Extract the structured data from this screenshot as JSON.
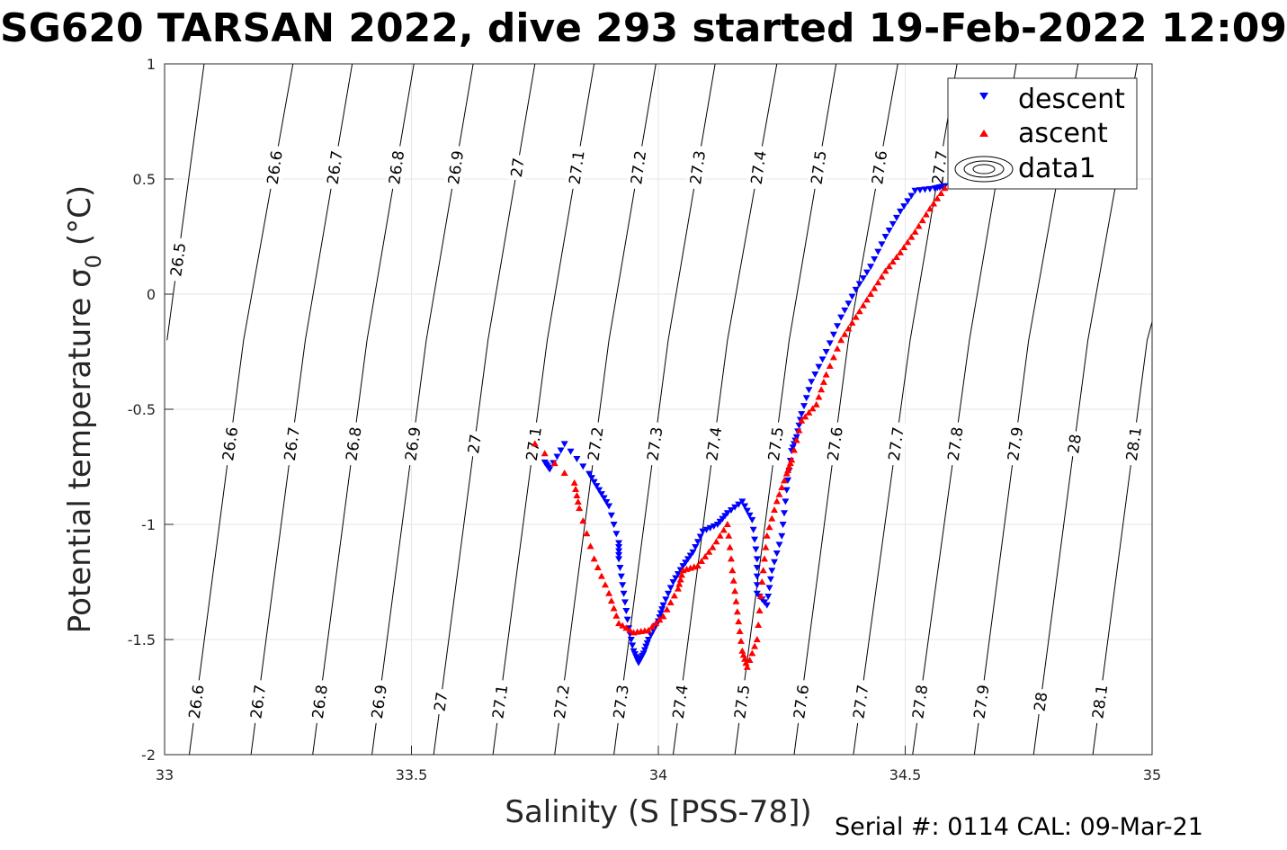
{
  "title": "SG620 TARSAN 2022, dive 293 started 19-Feb-2022 12:09",
  "footer": "Serial #: 0114  CAL: 09-Mar-21",
  "chart_data": {
    "type": "scatter",
    "xlabel": "Salinity (S [PSS-78])",
    "ylabel": "Potential temperature σ",
    "ylabel_sub": "0",
    "ylabel_unit": "(°C)",
    "xlim": [
      33,
      35
    ],
    "ylim": [
      -2,
      1
    ],
    "xticks": [
      33,
      33.5,
      34,
      34.5,
      35
    ],
    "xtick_labels": [
      "33",
      "33.5",
      "34",
      "34.5",
      "35"
    ],
    "yticks": [
      -2,
      -1.5,
      -1,
      -0.5,
      0,
      0.5,
      1
    ],
    "ytick_labels": [
      "-2",
      "-1.5",
      "-1",
      "-0.5",
      "0",
      "0.5",
      "1"
    ],
    "grid": true,
    "legend_position": "top-right",
    "colors": {
      "descent": "#0000ff",
      "ascent": "#ff0000",
      "contour": "#000000",
      "grid": "#e6e6e6"
    },
    "contours": [
      {
        "label": "26.5",
        "points": [
          [
            33.005,
            -0.2
          ],
          [
            33.08,
            1.0
          ]
        ]
      },
      {
        "label": "26.6",
        "points": [
          [
            33.05,
            -2.0
          ],
          [
            33.16,
            -0.2
          ],
          [
            33.26,
            1.0
          ]
        ]
      },
      {
        "label": "26.7",
        "points": [
          [
            33.175,
            -2.0
          ],
          [
            33.285,
            -0.2
          ],
          [
            33.38,
            1.0
          ]
        ]
      },
      {
        "label": "26.8",
        "points": [
          [
            33.3,
            -2.0
          ],
          [
            33.41,
            -0.2
          ],
          [
            33.505,
            1.0
          ]
        ]
      },
      {
        "label": "26.9",
        "points": [
          [
            33.42,
            -2.0
          ],
          [
            33.53,
            -0.2
          ],
          [
            33.625,
            1.0
          ]
        ]
      },
      {
        "label": "27",
        "points": [
          [
            33.545,
            -2.0
          ],
          [
            33.655,
            -0.2
          ],
          [
            33.75,
            1.0
          ]
        ]
      },
      {
        "label": "27.1",
        "points": [
          [
            33.665,
            -2.0
          ],
          [
            33.775,
            -0.2
          ],
          [
            33.87,
            1.0
          ]
        ]
      },
      {
        "label": "27.2",
        "points": [
          [
            33.79,
            -2.0
          ],
          [
            33.9,
            -0.2
          ],
          [
            33.995,
            1.0
          ]
        ]
      },
      {
        "label": "27.3",
        "points": [
          [
            33.91,
            -2.0
          ],
          [
            34.02,
            -0.2
          ],
          [
            34.115,
            1.0
          ]
        ]
      },
      {
        "label": "27.4",
        "points": [
          [
            34.03,
            -2.0
          ],
          [
            34.14,
            -0.2
          ],
          [
            34.24,
            1.0
          ]
        ]
      },
      {
        "label": "27.5",
        "points": [
          [
            34.155,
            -2.0
          ],
          [
            34.265,
            -0.2
          ],
          [
            34.36,
            1.0
          ]
        ]
      },
      {
        "label": "27.6",
        "points": [
          [
            34.275,
            -2.0
          ],
          [
            34.385,
            -0.2
          ],
          [
            34.485,
            1.0
          ]
        ]
      },
      {
        "label": "27.7",
        "points": [
          [
            34.395,
            -2.0
          ],
          [
            34.51,
            -0.2
          ],
          [
            34.605,
            1.0
          ]
        ]
      },
      {
        "label": "27.8",
        "points": [
          [
            34.515,
            -2.0
          ],
          [
            34.63,
            -0.2
          ],
          [
            34.725,
            1.0
          ]
        ]
      },
      {
        "label": "27.9",
        "points": [
          [
            34.64,
            -2.0
          ],
          [
            34.75,
            -0.2
          ],
          [
            34.85,
            1.0
          ]
        ]
      },
      {
        "label": "28",
        "points": [
          [
            34.76,
            -2.0
          ],
          [
            34.87,
            -0.2
          ],
          [
            34.97,
            1.0
          ]
        ]
      },
      {
        "label": "28.1",
        "points": [
          [
            34.88,
            -2.0
          ],
          [
            34.99,
            -0.2
          ],
          [
            35.0,
            -0.12
          ]
        ]
      }
    ],
    "contour_label_rows": [
      {
        "y": 0.55,
        "labels": [
          "26.6",
          "26.7",
          "26.8",
          "26.9",
          "27",
          "27.1",
          "27.2",
          "27.3",
          "27.4",
          "27.5",
          "27.6",
          "27.7"
        ]
      },
      {
        "y": -0.65,
        "labels": [
          "26.6",
          "26.7",
          "26.8",
          "26.9",
          "27",
          "27.1",
          "27.2",
          "27.3",
          "27.4",
          "27.5",
          "27.6",
          "27.7",
          "27.8",
          "27.9",
          "28",
          "28.1"
        ]
      },
      {
        "y": -1.77,
        "labels": [
          "26.6",
          "26.7",
          "26.8",
          "26.9",
          "27",
          "27.1",
          "27.2",
          "27.3",
          "27.4",
          "27.5",
          "27.6",
          "27.7",
          "27.8",
          "27.9",
          "28",
          "28.1"
        ]
      },
      {
        "y": 0.15,
        "labels": [
          "26.5"
        ]
      }
    ],
    "series": [
      {
        "name": "descent",
        "marker": "triangle-down",
        "color": "#0000ff",
        "points": [
          [
            33.77,
            -0.73
          ],
          [
            33.78,
            -0.76
          ],
          [
            33.81,
            -0.65
          ],
          [
            33.86,
            -0.78
          ],
          [
            33.88,
            -0.85
          ],
          [
            33.9,
            -0.92
          ],
          [
            33.92,
            -1.08
          ],
          [
            33.92,
            -1.15
          ],
          [
            33.93,
            -1.3
          ],
          [
            33.94,
            -1.45
          ],
          [
            33.95,
            -1.55
          ],
          [
            33.96,
            -1.6
          ],
          [
            33.97,
            -1.56
          ],
          [
            33.98,
            -1.5
          ],
          [
            34.0,
            -1.42
          ],
          [
            34.01,
            -1.35
          ],
          [
            34.03,
            -1.25
          ],
          [
            34.05,
            -1.18
          ],
          [
            34.07,
            -1.12
          ],
          [
            34.09,
            -1.03
          ],
          [
            34.12,
            -1.0
          ],
          [
            34.14,
            -0.95
          ],
          [
            34.17,
            -0.9
          ],
          [
            34.19,
            -0.98
          ],
          [
            34.2,
            -1.15
          ],
          [
            34.2,
            -1.3
          ],
          [
            34.22,
            -1.35
          ],
          [
            34.23,
            -1.2
          ],
          [
            34.25,
            -1.05
          ],
          [
            34.26,
            -0.85
          ],
          [
            34.27,
            -0.68
          ],
          [
            34.28,
            -0.62
          ],
          [
            34.29,
            -0.52
          ],
          [
            34.31,
            -0.38
          ],
          [
            34.34,
            -0.25
          ],
          [
            34.37,
            -0.1
          ],
          [
            34.4,
            0.02
          ],
          [
            34.43,
            0.12
          ],
          [
            34.46,
            0.25
          ],
          [
            34.49,
            0.36
          ],
          [
            34.52,
            0.45
          ],
          [
            34.56,
            0.46
          ],
          [
            34.58,
            0.47
          ]
        ]
      },
      {
        "name": "ascent",
        "marker": "triangle-up",
        "color": "#ff0000",
        "points": [
          [
            33.75,
            -0.65
          ],
          [
            33.83,
            -0.82
          ],
          [
            33.84,
            -0.93
          ],
          [
            33.87,
            -1.15
          ],
          [
            33.9,
            -1.3
          ],
          [
            33.92,
            -1.43
          ],
          [
            33.95,
            -1.47
          ],
          [
            33.98,
            -1.46
          ],
          [
            34.01,
            -1.4
          ],
          [
            34.04,
            -1.28
          ],
          [
            34.05,
            -1.2
          ],
          [
            34.08,
            -1.18
          ],
          [
            34.11,
            -1.1
          ],
          [
            34.14,
            -1.0
          ],
          [
            34.15,
            -1.2
          ],
          [
            34.16,
            -1.38
          ],
          [
            34.17,
            -1.55
          ],
          [
            34.18,
            -1.62
          ],
          [
            34.2,
            -1.5
          ],
          [
            34.21,
            -1.25
          ],
          [
            34.22,
            -1.05
          ],
          [
            34.24,
            -0.9
          ],
          [
            34.26,
            -0.78
          ],
          [
            34.27,
            -0.72
          ],
          [
            34.29,
            -0.55
          ],
          [
            34.32,
            -0.48
          ],
          [
            34.34,
            -0.35
          ],
          [
            34.37,
            -0.2
          ],
          [
            34.4,
            -0.1
          ],
          [
            34.43,
            0.0
          ],
          [
            34.46,
            0.1
          ],
          [
            34.49,
            0.18
          ],
          [
            34.52,
            0.27
          ],
          [
            34.55,
            0.37
          ],
          [
            34.58,
            0.46
          ]
        ]
      }
    ],
    "legend": [
      "descent",
      "ascent",
      "data1"
    ]
  }
}
